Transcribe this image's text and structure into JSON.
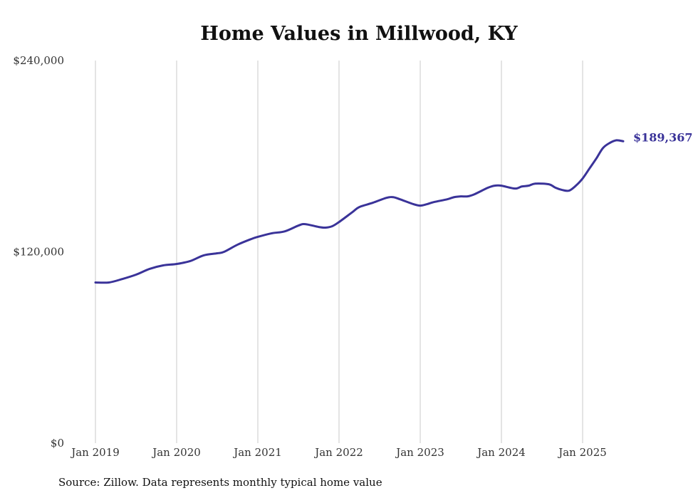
{
  "chart_data": {
    "type": "line",
    "title": "Home Values in Millwood, KY",
    "xlabel": "",
    "ylabel": "",
    "ylim": [
      0,
      240000
    ],
    "y_ticks": [
      "$0",
      "$120,000",
      "$240,000"
    ],
    "y_tick_values": [
      0,
      120000,
      240000
    ],
    "x_ticks": [
      "Jan 2019",
      "Jan 2020",
      "Jan 2021",
      "Jan 2022",
      "Jan 2023",
      "Jan 2024",
      "Jan 2025"
    ],
    "x_tick_months": [
      0,
      12,
      24,
      36,
      48,
      60,
      72
    ],
    "xlim_months": [
      0,
      78
    ],
    "grid": "vertical",
    "series": [
      {
        "name": "Typical home value",
        "color": "#3a3399",
        "x_months": [
          0,
          2,
          4,
          6,
          8,
          10,
          12,
          14,
          16,
          18,
          19,
          21,
          23,
          24,
          26,
          28,
          30,
          31,
          33,
          34,
          35,
          36,
          38,
          39,
          41,
          43,
          44,
          45,
          47,
          48,
          49,
          50,
          52,
          53,
          54,
          55,
          56,
          58,
          59,
          60,
          62,
          63,
          64,
          65,
          67,
          68,
          69,
          70,
          71,
          72,
          73,
          74,
          75,
          76,
          77,
          78
        ],
        "values": [
          100800,
          100800,
          103000,
          105700,
          109300,
          111500,
          112400,
          114200,
          117800,
          119100,
          120000,
          124500,
          128000,
          129400,
          131600,
          132900,
          136500,
          137400,
          135600,
          135200,
          136100,
          138700,
          145000,
          148100,
          150800,
          153900,
          154300,
          153000,
          149900,
          149000,
          149900,
          151200,
          153000,
          154300,
          154800,
          154800,
          156100,
          160200,
          161500,
          161500,
          159700,
          161000,
          161500,
          162800,
          162400,
          160200,
          158800,
          158400,
          161500,
          166000,
          172200,
          178400,
          185100,
          188300,
          190000,
          189367
        ]
      }
    ],
    "end_label": "$189,367",
    "source": "Source: Zillow. Data represents monthly typical home value"
  }
}
